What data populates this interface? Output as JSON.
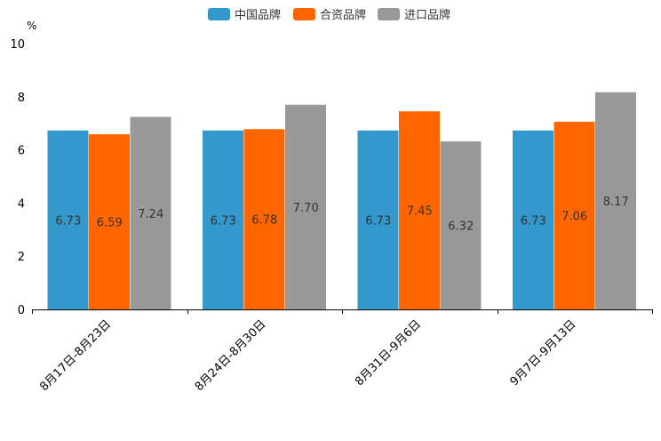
{
  "chart_data": {
    "type": "bar",
    "title": "",
    "xlabel": "",
    "ylabel": "",
    "unit": "%",
    "ylim": [
      0,
      10
    ],
    "yticks": [
      0,
      2,
      4,
      6,
      8,
      10
    ],
    "grid": false,
    "legend_position": "top-center",
    "categories": [
      "8月17日-8月23日",
      "8月24日-8月30日",
      "8月31日-9月6日",
      "9月7日-9月13日"
    ],
    "series": [
      {
        "name": "中国品牌",
        "color": "#3399CC",
        "values": [
          6.73,
          6.73,
          6.73,
          6.73
        ],
        "labels": [
          "6.73",
          "6.73",
          "6.73",
          "6.73"
        ]
      },
      {
        "name": "合资品牌",
        "color": "#FF6600",
        "values": [
          6.59,
          6.78,
          7.45,
          7.06
        ],
        "labels": [
          "6.59",
          "6.78",
          "7.45",
          "7.06"
        ]
      },
      {
        "name": "进口品牌",
        "color": "#999999",
        "values": [
          7.24,
          7.7,
          6.32,
          8.17
        ],
        "labels": [
          "7.24",
          "7.70",
          "6.32",
          "8.17"
        ]
      }
    ]
  }
}
